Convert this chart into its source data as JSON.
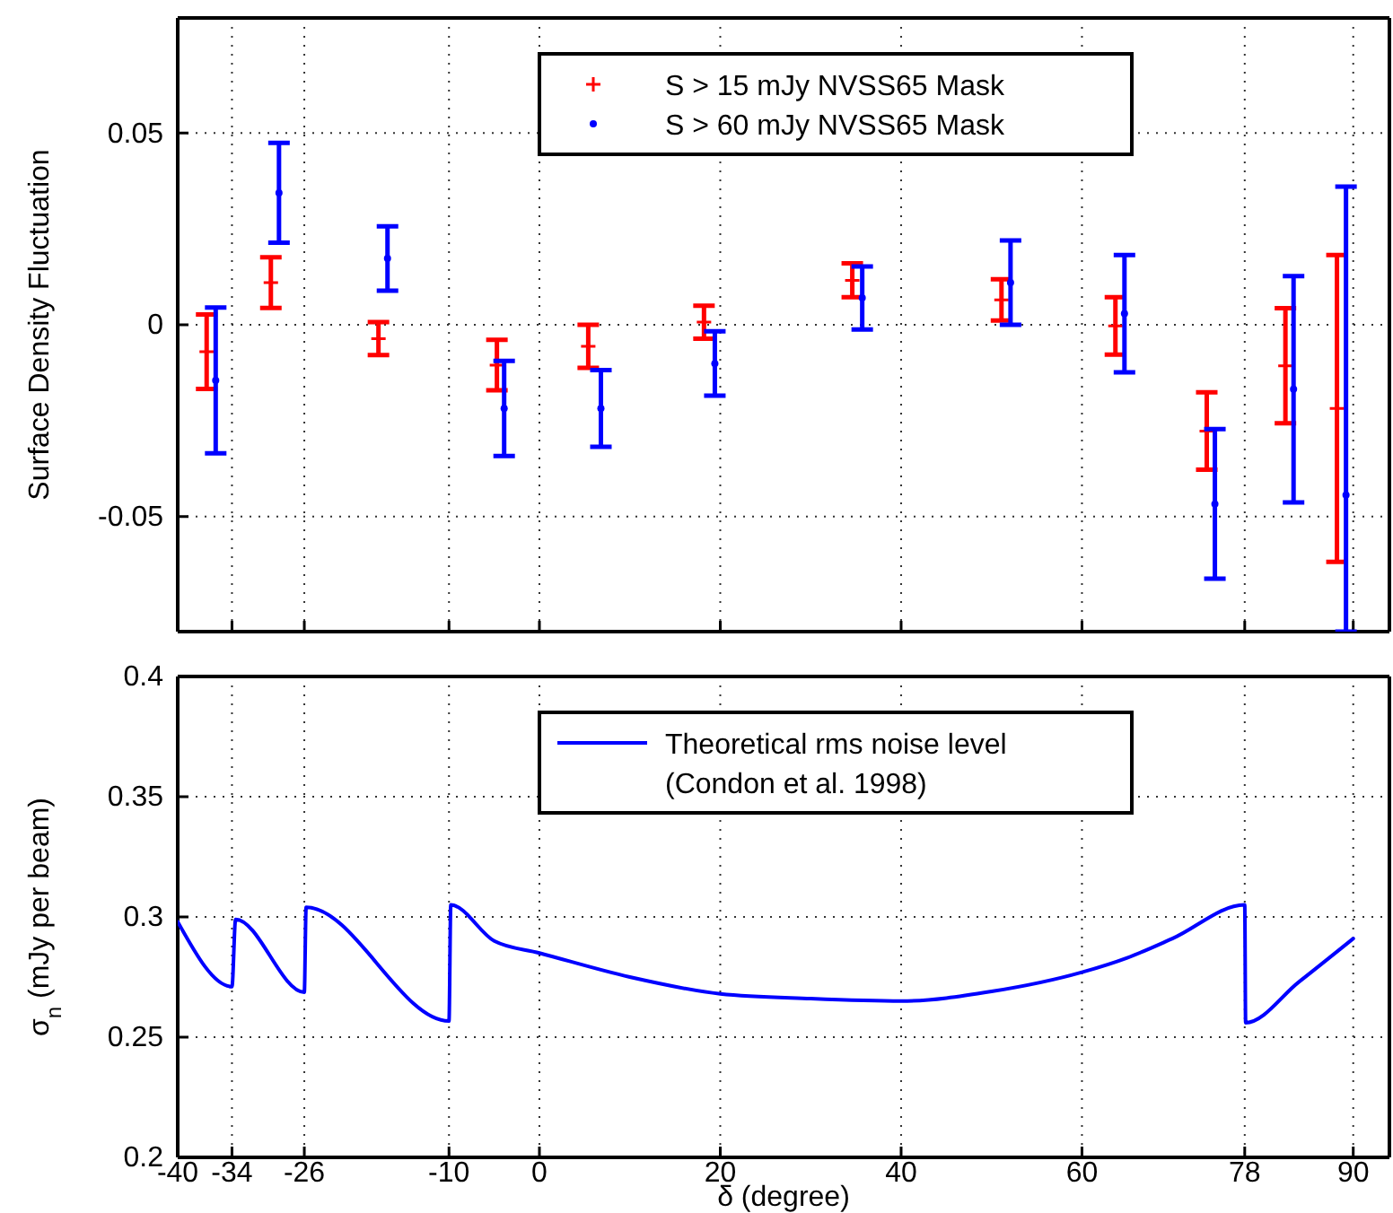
{
  "chart_data": [
    {
      "type": "scatter",
      "ylabel": "Surface Density Fluctuation",
      "xlim": [
        -40,
        94
      ],
      "ylim": [
        -0.08,
        0.08
      ],
      "xticks": [
        -40,
        -34,
        -26,
        -10,
        0,
        20,
        40,
        60,
        78,
        90
      ],
      "yticks": [
        -0.05,
        0,
        0.05
      ],
      "tick_labels": "y",
      "grid": true,
      "legend": "top",
      "series": [
        {
          "name": "S > 15 mJy NVSS65 Mask",
          "color": "#ff0000",
          "marker": "cross",
          "x": [
            -36.8,
            -29.7,
            -17.8,
            -4.7,
            5.4,
            18.2,
            34.6,
            51.1,
            63.7,
            73.8,
            82.5,
            88.2
          ],
          "values": [
            -0.007,
            0.011,
            -0.0036,
            -0.0105,
            -0.0056,
            0.0007,
            0.0116,
            0.0065,
            -0.0003,
            -0.0277,
            -0.0107,
            -0.0218
          ],
          "errors": [
            0.0097,
            0.0066,
            0.0043,
            0.0066,
            0.0056,
            0.0043,
            0.0044,
            0.0054,
            0.0075,
            0.0101,
            0.015,
            0.04
          ]
        },
        {
          "name": "S > 60 mJy NVSS65 Mask",
          "color": "#0000ff",
          "marker": "circle",
          "x": [
            -35.8,
            -28.8,
            -16.8,
            -3.9,
            6.8,
            19.4,
            35.7,
            52.1,
            64.7,
            74.7,
            83.4,
            89.2
          ],
          "values": [
            -0.0145,
            0.0344,
            0.0173,
            -0.0218,
            -0.0218,
            -0.0101,
            0.007,
            0.011,
            0.0029,
            -0.0467,
            -0.0168,
            -0.0444
          ],
          "errors": [
            0.019,
            0.013,
            0.0084,
            0.0124,
            0.01,
            0.0084,
            0.0082,
            0.011,
            0.0153,
            0.0195,
            0.0295,
            [
              -0.08,
              0.036
            ]
          ]
        }
      ]
    },
    {
      "type": "line",
      "xlabel": "δ (degree)",
      "ylabel": "σ$_{n}$ (mJy per beam)",
      "xlim": [
        -40,
        94
      ],
      "ylim": [
        0.2,
        0.4
      ],
      "xticks": [
        -40,
        -34,
        -26,
        -10,
        0,
        20,
        40,
        60,
        78,
        90
      ],
      "yticks": [
        0.2,
        0.25,
        0.3,
        0.35,
        0.4
      ],
      "grid": true,
      "legend": "top",
      "series": [
        {
          "name": "Theoretical rms noise level (Condon et al. 1998)",
          "color": "#0000ff",
          "x": [
            -40,
            -34,
            -33.6,
            -26,
            -25.8,
            -10,
            -9.8,
            -5,
            0,
            10,
            20,
            30,
            40,
            50,
            60,
            65,
            70,
            78,
            78.1,
            84,
            90
          ],
          "values": [
            0.298,
            0.271,
            0.299,
            0.2687,
            0.304,
            0.2567,
            0.305,
            0.29,
            0.285,
            0.275,
            0.268,
            0.266,
            0.265,
            0.269,
            0.277,
            0.283,
            0.291,
            0.305,
            0.256,
            0.273,
            0.291
          ]
        }
      ]
    }
  ]
}
